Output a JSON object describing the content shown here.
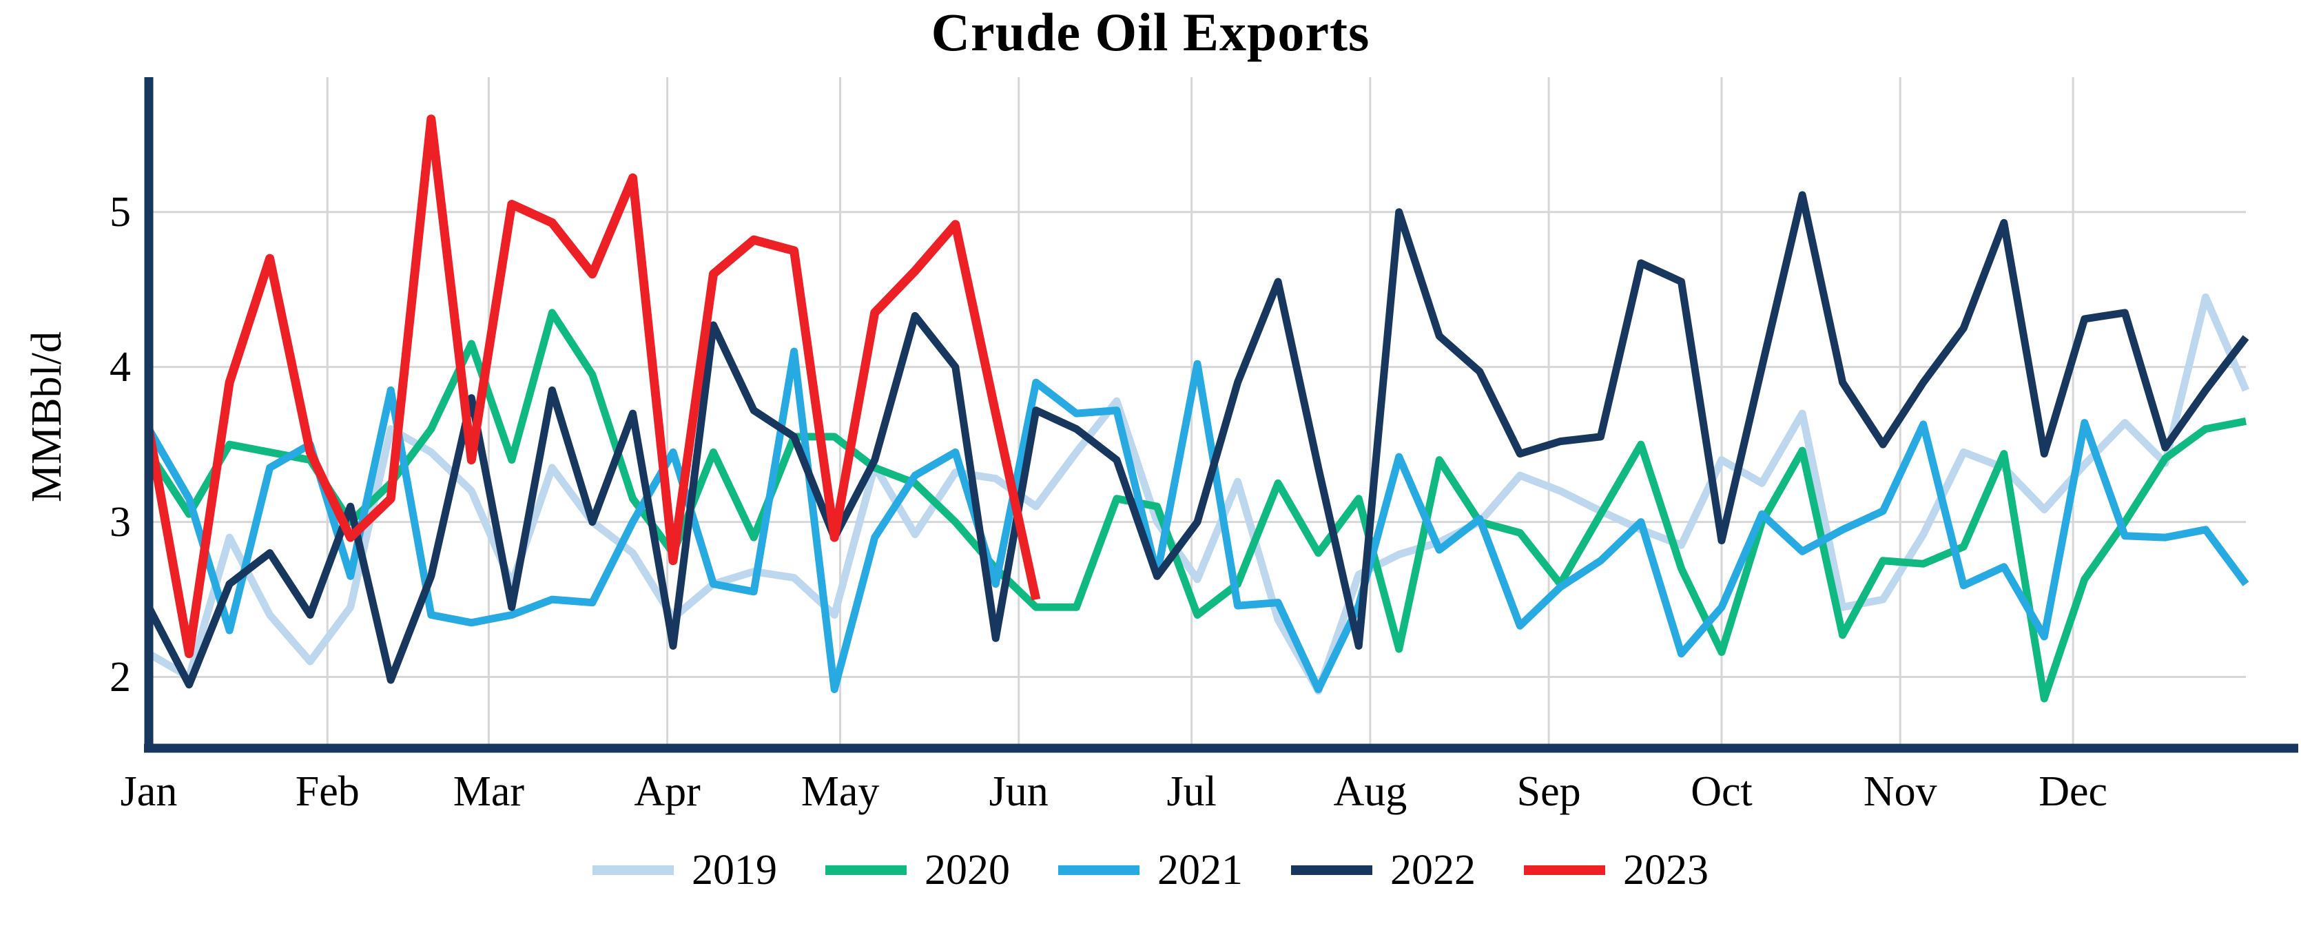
{
  "title": "Crude Oil Exports",
  "y_axis": {
    "label": "MMBbl/d",
    "ticks": [
      "5",
      "4",
      "3",
      "2"
    ]
  },
  "x_axis": {
    "months": [
      "Jan",
      "Feb",
      "Mar",
      "Apr",
      "May",
      "Jun",
      "Jul",
      "Aug",
      "Sep",
      "Oct",
      "Nov",
      "Dec"
    ]
  },
  "colors": {
    "axis": "#17375E",
    "gridline": "#D6D6D6",
    "2019": "#BDD7EE",
    "2020": "#10B982",
    "2021": "#27AAE1",
    "2022": "#17375E",
    "2023": "#EC2025"
  },
  "chart_data": {
    "type": "line",
    "title": "Crude Oil Exports",
    "xlabel": "",
    "ylabel": "MMBbl/d",
    "x_unit": "weekly values, Jan-Dec",
    "ylim": [
      1.54,
      5.87
    ],
    "yticks": [
      2,
      3,
      4,
      5
    ],
    "grid": true,
    "legend_position": "bottom",
    "months": [
      "Jan",
      "Feb",
      "Mar",
      "Apr",
      "May",
      "Jun",
      "Jul",
      "Aug",
      "Sep",
      "Oct",
      "Nov",
      "Dec"
    ],
    "month_start_days": [
      0,
      31,
      59,
      90,
      120,
      151,
      181,
      212,
      243,
      273,
      304,
      334
    ],
    "days_per_year": 364,
    "points_per_year": 53,
    "series": [
      {
        "name": "2019",
        "color": "#BDD7EE",
        "values": [
          2.15,
          2.0,
          2.9,
          2.4,
          2.1,
          2.45,
          3.6,
          3.45,
          3.2,
          2.6,
          3.35,
          3.0,
          2.8,
          2.38,
          2.6,
          2.68,
          2.64,
          2.4,
          3.36,
          2.92,
          3.32,
          3.28,
          3.1,
          3.45,
          3.78,
          3.0,
          2.63,
          3.26,
          2.37,
          1.91,
          2.66,
          2.79,
          2.87,
          3.0,
          3.3,
          3.2,
          3.07,
          2.95,
          2.85,
          3.4,
          3.25,
          3.7,
          2.45,
          2.5,
          2.92,
          3.45,
          3.35,
          3.08,
          3.37,
          3.64,
          3.38,
          4.45,
          3.85
        ]
      },
      {
        "name": "2020",
        "color": "#10B982",
        "values": [
          3.45,
          3.05,
          3.5,
          3.45,
          3.4,
          3.0,
          3.25,
          3.6,
          4.15,
          3.4,
          4.35,
          3.95,
          3.15,
          2.8,
          3.45,
          2.9,
          3.55,
          3.55,
          3.35,
          3.25,
          3.0,
          2.7,
          2.45,
          2.45,
          3.15,
          3.1,
          2.4,
          2.6,
          3.25,
          2.8,
          3.15,
          2.18,
          3.4,
          3.0,
          2.93,
          2.6,
          3.05,
          3.5,
          2.7,
          2.16,
          3.0,
          3.46,
          2.27,
          2.75,
          2.73,
          2.84,
          3.44,
          1.86,
          2.63,
          3.0,
          3.41,
          3.6,
          3.65
        ]
      },
      {
        "name": "2021",
        "color": "#27AAE1",
        "values": [
          3.6,
          3.15,
          2.3,
          3.35,
          3.5,
          2.65,
          3.85,
          2.4,
          2.35,
          2.4,
          2.5,
          2.48,
          3.0,
          3.45,
          2.6,
          2.55,
          4.1,
          1.92,
          2.9,
          3.3,
          3.45,
          2.6,
          3.9,
          3.7,
          3.72,
          2.66,
          4.02,
          2.46,
          2.48,
          1.92,
          2.46,
          3.42,
          2.82,
          3.02,
          2.33,
          2.58,
          2.75,
          3.0,
          2.15,
          2.45,
          3.05,
          2.81,
          2.95,
          3.07,
          3.63,
          2.59,
          2.71,
          2.26,
          3.64,
          2.91,
          2.9,
          2.95,
          2.6
        ]
      },
      {
        "name": "2022",
        "color": "#17375E",
        "values": [
          2.45,
          1.95,
          2.6,
          2.8,
          2.4,
          3.1,
          1.98,
          2.65,
          3.8,
          2.45,
          3.85,
          3.0,
          3.7,
          2.2,
          4.27,
          3.72,
          3.55,
          2.9,
          3.4,
          4.33,
          4.0,
          2.25,
          3.72,
          3.6,
          3.4,
          2.65,
          3.0,
          3.9,
          4.55,
          3.35,
          2.2,
          5.0,
          4.2,
          3.97,
          3.44,
          3.52,
          3.55,
          4.67,
          4.55,
          2.88,
          4.0,
          5.11,
          3.9,
          3.5,
          3.9,
          4.25,
          4.93,
          3.44,
          4.31,
          4.35,
          3.48,
          3.85,
          4.19
        ]
      },
      {
        "name": "2023",
        "color": "#EC2025",
        "values": [
          3.6,
          2.15,
          3.9,
          4.7,
          3.45,
          2.9,
          3.15,
          5.6,
          3.4,
          5.05,
          4.93,
          4.6,
          5.22,
          2.75,
          4.6,
          4.82,
          4.75,
          2.9,
          4.35,
          4.62,
          4.92,
          3.7,
          2.5
        ]
      }
    ]
  }
}
